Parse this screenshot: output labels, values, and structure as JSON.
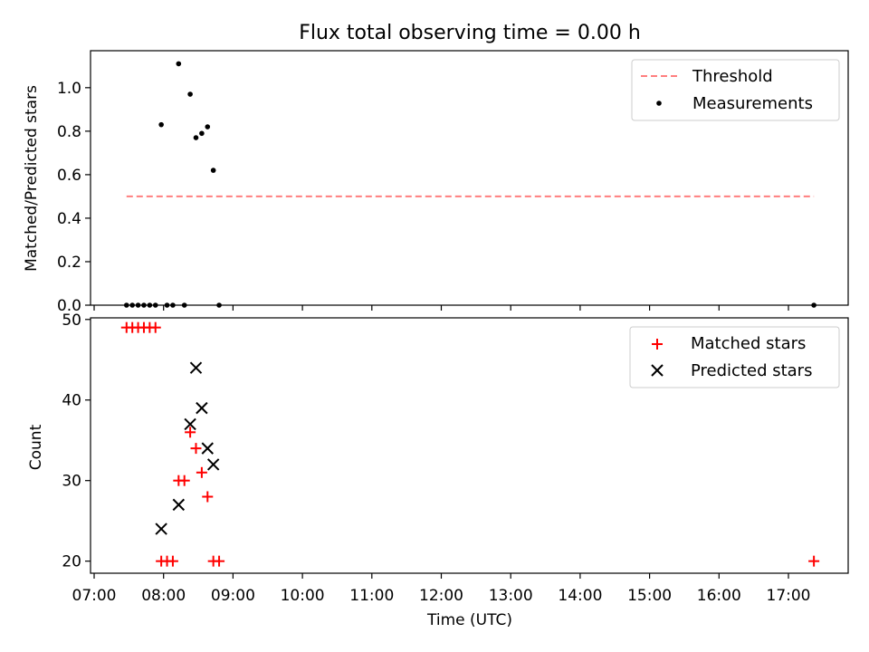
{
  "title": "Flux total observing time = 0.00 h",
  "xlabel": "Time (UTC)",
  "x_ticks": [
    "07:00",
    "08:00",
    "09:00",
    "10:00",
    "11:00",
    "12:00",
    "13:00",
    "14:00",
    "15:00",
    "16:00",
    "17:00"
  ],
  "colors": {
    "threshold": "#ff7f7f",
    "measurement": "#000000",
    "matched": "#ff0000",
    "predicted": "#000000"
  },
  "chart_data": [
    {
      "type": "scatter",
      "ylabel": "Matched/Predicted stars",
      "xlim": [
        "07:00",
        "17:50"
      ],
      "ylim": [
        0,
        1.17
      ],
      "y_ticks": [
        "0.0",
        "0.2",
        "0.4",
        "0.6",
        "0.8",
        "1.0"
      ],
      "legend_position": "top-right",
      "threshold": {
        "name": "Threshold",
        "x": [
          "07:28",
          "17:22"
        ],
        "y": 0.5
      },
      "series": [
        {
          "name": "Measurements",
          "points": [
            {
              "x": "07:28",
              "y": 0.0
            },
            {
              "x": "07:33",
              "y": 0.0
            },
            {
              "x": "07:38",
              "y": 0.0
            },
            {
              "x": "07:43",
              "y": 0.0
            },
            {
              "x": "07:48",
              "y": 0.0
            },
            {
              "x": "07:53",
              "y": 0.0
            },
            {
              "x": "07:58",
              "y": 0.83
            },
            {
              "x": "08:03",
              "y": 0.0
            },
            {
              "x": "08:08",
              "y": 0.0
            },
            {
              "x": "08:13",
              "y": 1.11
            },
            {
              "x": "08:18",
              "y": 0.0
            },
            {
              "x": "08:23",
              "y": 0.97
            },
            {
              "x": "08:28",
              "y": 0.77
            },
            {
              "x": "08:33",
              "y": 0.79
            },
            {
              "x": "08:38",
              "y": 0.82
            },
            {
              "x": "08:43",
              "y": 0.62
            },
            {
              "x": "08:48",
              "y": 0.0
            },
            {
              "x": "17:22",
              "y": 0.0
            }
          ]
        }
      ]
    },
    {
      "type": "scatter",
      "ylabel": "Count",
      "xlim": [
        "07:00",
        "17:50"
      ],
      "ylim": [
        18.5,
        50.2
      ],
      "y_ticks": [
        "20",
        "30",
        "40",
        "50"
      ],
      "legend_position": "top-right",
      "series": [
        {
          "name": "Matched stars",
          "marker": "plus",
          "points": [
            {
              "x": "07:28",
              "y": 49
            },
            {
              "x": "07:33",
              "y": 49
            },
            {
              "x": "07:38",
              "y": 49
            },
            {
              "x": "07:43",
              "y": 49
            },
            {
              "x": "07:48",
              "y": 49
            },
            {
              "x": "07:53",
              "y": 49
            },
            {
              "x": "07:58",
              "y": 20
            },
            {
              "x": "08:03",
              "y": 20
            },
            {
              "x": "08:08",
              "y": 20
            },
            {
              "x": "08:13",
              "y": 30
            },
            {
              "x": "08:18",
              "y": 30
            },
            {
              "x": "08:23",
              "y": 36
            },
            {
              "x": "08:28",
              "y": 34
            },
            {
              "x": "08:33",
              "y": 31
            },
            {
              "x": "08:38",
              "y": 28
            },
            {
              "x": "08:43",
              "y": 20
            },
            {
              "x": "08:48",
              "y": 20
            },
            {
              "x": "17:22",
              "y": 20
            }
          ]
        },
        {
          "name": "Predicted stars",
          "marker": "x",
          "points": [
            {
              "x": "07:58",
              "y": 24
            },
            {
              "x": "08:13",
              "y": 27
            },
            {
              "x": "08:23",
              "y": 37
            },
            {
              "x": "08:28",
              "y": 44
            },
            {
              "x": "08:33",
              "y": 39
            },
            {
              "x": "08:38",
              "y": 34
            },
            {
              "x": "08:43",
              "y": 32
            }
          ]
        }
      ]
    }
  ]
}
